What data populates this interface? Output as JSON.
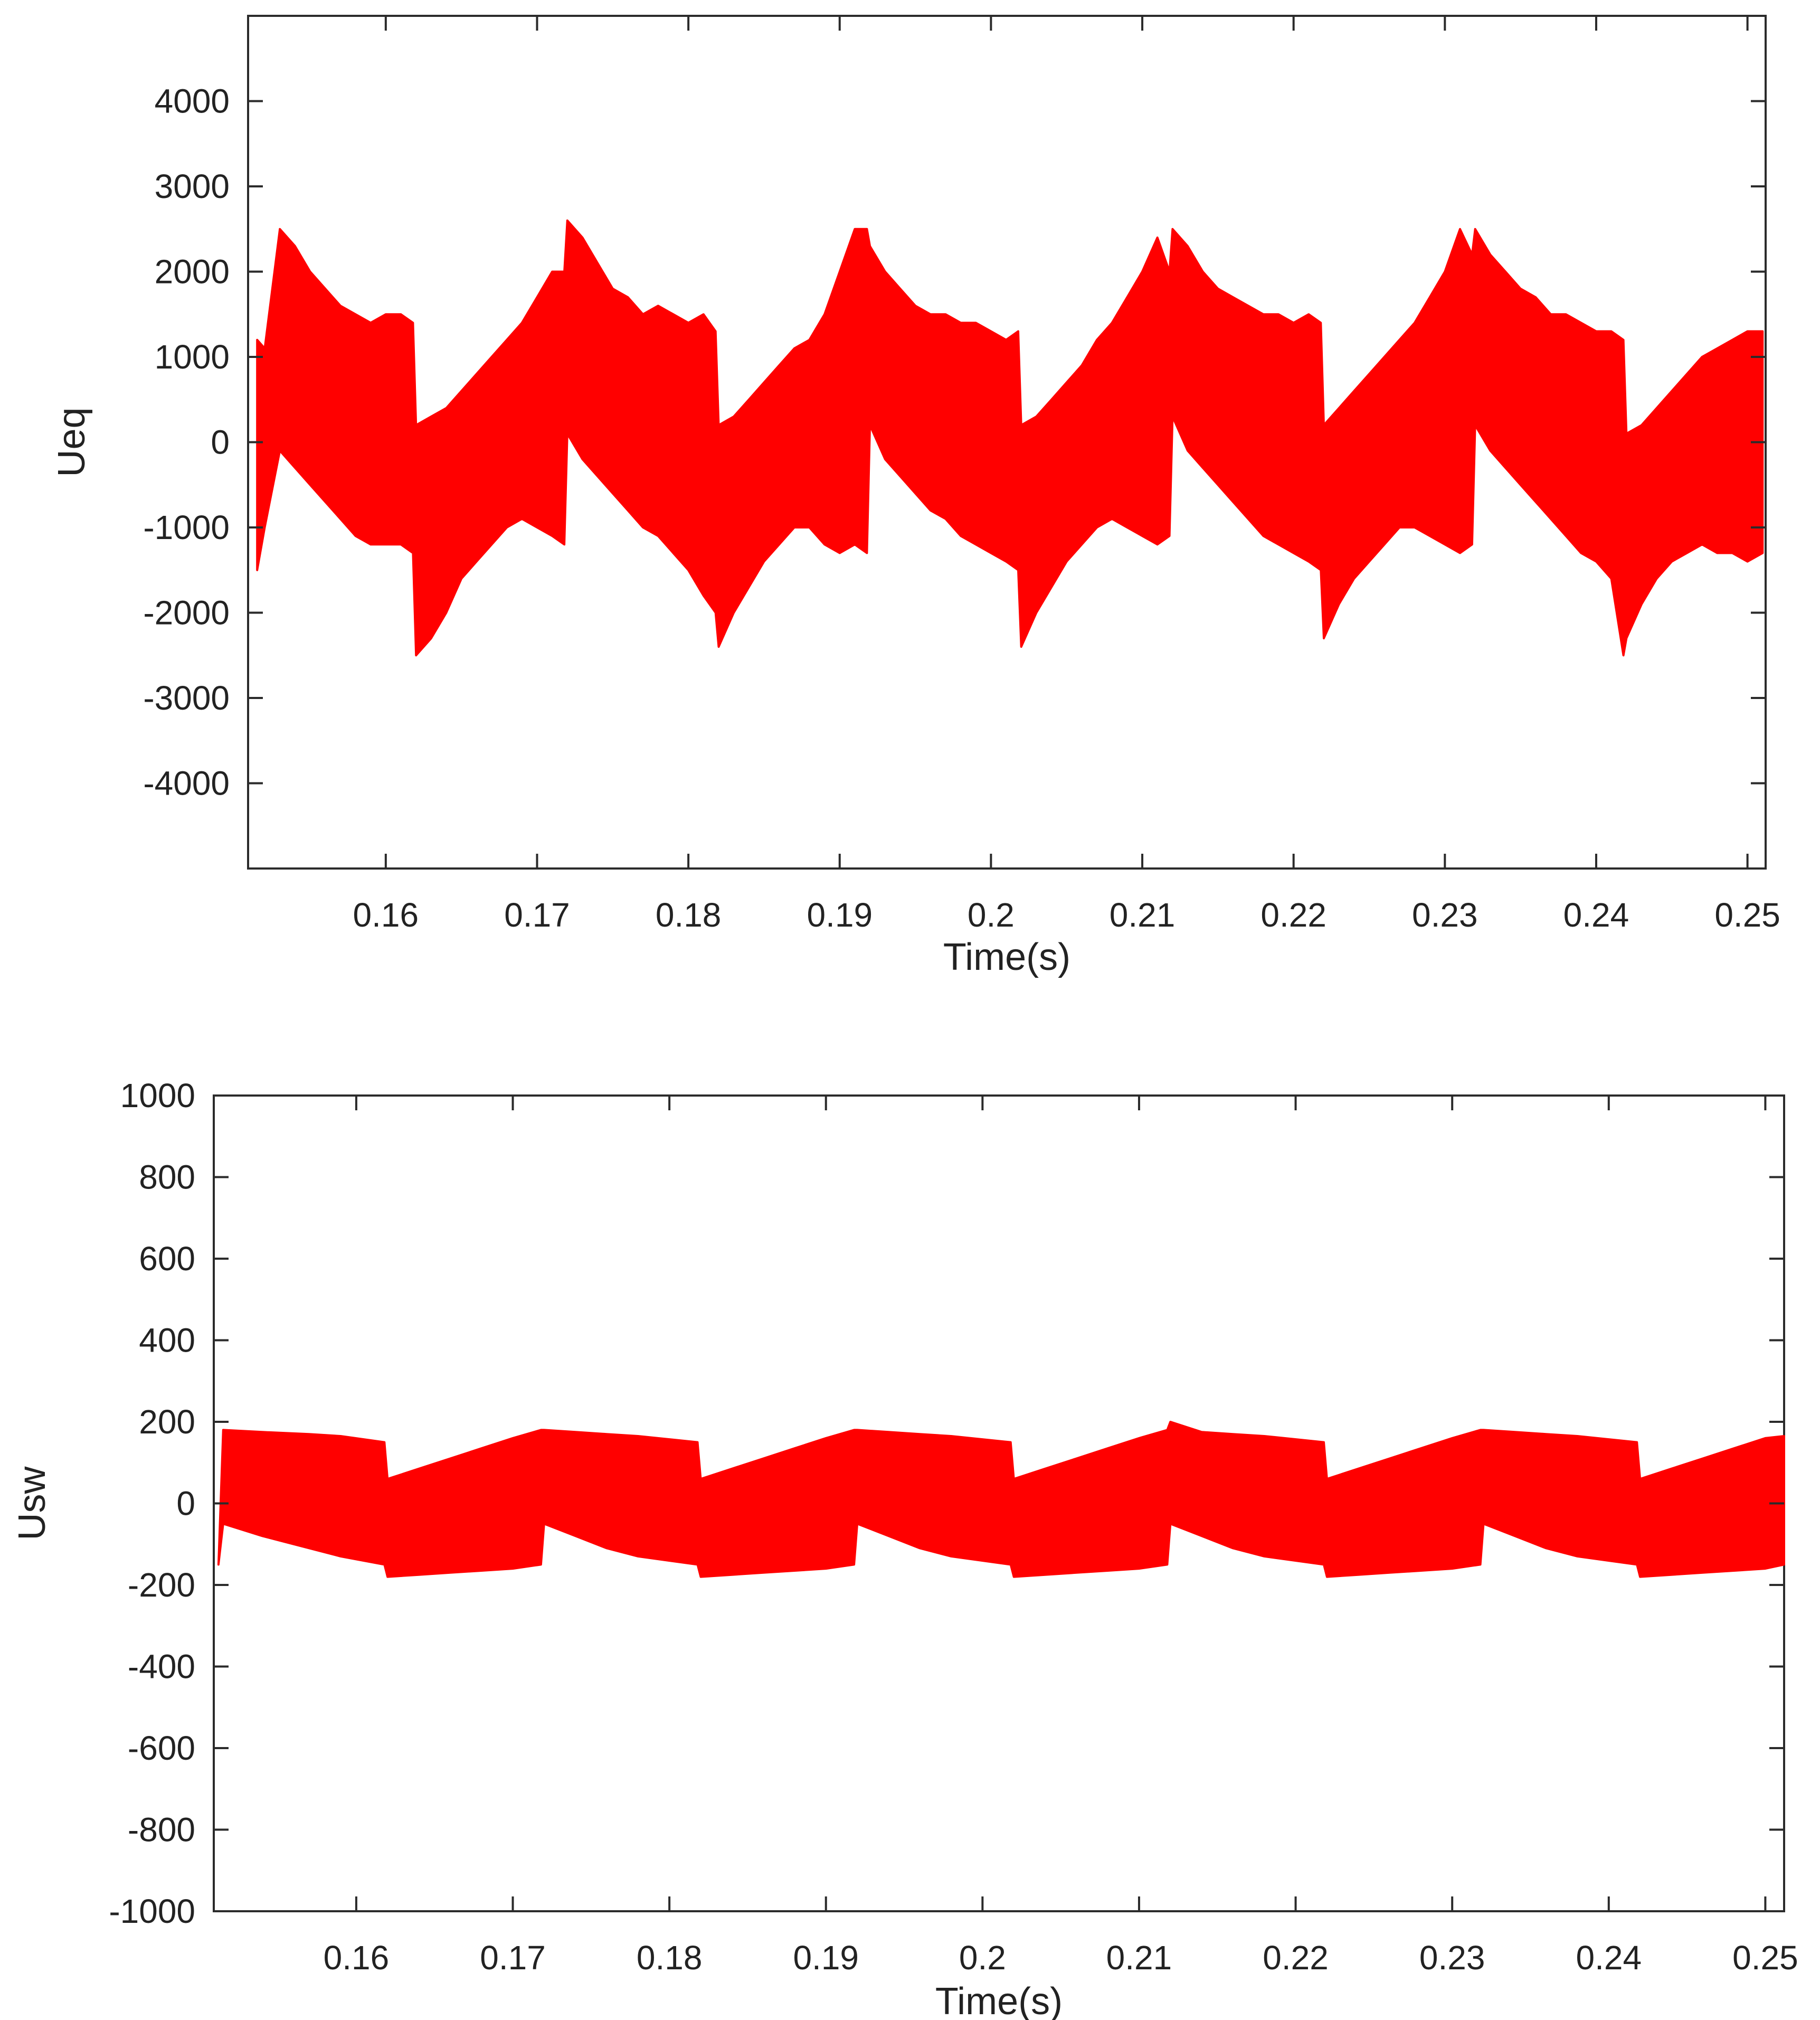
{
  "figure": {
    "background": "#ffffff",
    "axis_color": "#2b2b2b",
    "series_color": "#ff0000"
  },
  "chart_data": [
    {
      "type": "line",
      "title": "",
      "xlabel": "Time(s)",
      "ylabel": "Ueq",
      "xlim": [
        0.1509,
        0.2512
      ],
      "ylim": [
        -5000,
        5000
      ],
      "xticks": [
        0.16,
        0.17,
        0.18,
        0.19,
        0.2,
        0.21,
        0.22,
        0.23,
        0.24,
        0.25
      ],
      "xtick_labels": [
        "0.16",
        "0.17",
        "0.18",
        "0.19",
        "0.2",
        "0.21",
        "0.22",
        "0.23",
        "0.24",
        "0.25"
      ],
      "yticks": [
        4000,
        3000,
        2000,
        1000,
        0,
        -1000,
        -2000,
        -3000,
        -4000
      ],
      "ytick_labels": [
        "4000",
        "3000",
        "2000",
        "1000",
        "0",
        "-1000",
        "-2000",
        "-3000",
        "-4000"
      ],
      "grid": false,
      "color": "#ff0000",
      "series": [
        {
          "x": [
            0.1515,
            0.152,
            0.153,
            0.154,
            0.155,
            0.156,
            0.157,
            0.158,
            0.159,
            0.16,
            0.161,
            0.1618,
            0.162,
            0.163,
            0.164,
            0.165,
            0.166,
            0.167,
            0.168,
            0.169,
            0.17,
            0.171,
            0.1718,
            0.172,
            0.173,
            0.174,
            0.175,
            0.176,
            0.177,
            0.178,
            0.179,
            0.18,
            0.181,
            0.1818,
            0.182,
            0.183,
            0.184,
            0.185,
            0.186,
            0.187,
            0.188,
            0.189,
            0.19,
            0.191,
            0.1918,
            0.192,
            0.193,
            0.194,
            0.195,
            0.196,
            0.197,
            0.198,
            0.199,
            0.2,
            0.201,
            0.2018,
            0.202,
            0.203,
            0.204,
            0.205,
            0.206,
            0.207,
            0.208,
            0.209,
            0.21,
            0.211,
            0.2118,
            0.212,
            0.213,
            0.214,
            0.215,
            0.216,
            0.217,
            0.218,
            0.219,
            0.22,
            0.221,
            0.2218,
            0.222,
            0.223,
            0.224,
            0.225,
            0.226,
            0.227,
            0.228,
            0.229,
            0.23,
            0.231,
            0.2318,
            0.232,
            0.233,
            0.234,
            0.235,
            0.236,
            0.237,
            0.238,
            0.239,
            0.24,
            0.241,
            0.2418,
            0.242,
            0.243,
            0.244,
            0.245,
            0.246,
            0.247,
            0.248,
            0.249,
            0.25,
            0.251
          ],
          "upper": [
            1200,
            1100,
            2500,
            2300,
            2000,
            1800,
            1600,
            1500,
            1400,
            1500,
            1500,
            1400,
            200,
            300,
            400,
            600,
            800,
            1000,
            1200,
            1400,
            1700,
            2000,
            2000,
            2600,
            2400,
            2100,
            1800,
            1700,
            1500,
            1600,
            1500,
            1400,
            1500,
            1300,
            200,
            300,
            500,
            700,
            900,
            1100,
            1200,
            1500,
            2000,
            2500,
            2500,
            2300,
            2000,
            1800,
            1600,
            1500,
            1500,
            1400,
            1400,
            1300,
            1200,
            1300,
            200,
            300,
            500,
            700,
            900,
            1200,
            1400,
            1700,
            2000,
            2400,
            2000,
            2500,
            2300,
            2000,
            1800,
            1700,
            1600,
            1500,
            1500,
            1400,
            1500,
            1400,
            200,
            400,
            600,
            800,
            1000,
            1200,
            1400,
            1700,
            2000,
            2500,
            2200,
            2500,
            2200,
            2000,
            1800,
            1700,
            1500,
            1500,
            1400,
            1300,
            1300,
            1200,
            100,
            200,
            400,
            600,
            800,
            1000,
            1100,
            1200,
            1300,
            1300
          ],
          "lower": [
            -1500,
            -1000,
            -100,
            -300,
            -500,
            -700,
            -900,
            -1100,
            -1200,
            -1200,
            -1200,
            -1300,
            -2500,
            -2300,
            -2000,
            -1600,
            -1400,
            -1200,
            -1000,
            -900,
            -1000,
            -1100,
            -1200,
            100,
            -200,
            -400,
            -600,
            -800,
            -1000,
            -1100,
            -1300,
            -1500,
            -1800,
            -2000,
            -2400,
            -2000,
            -1700,
            -1400,
            -1200,
            -1000,
            -1000,
            -1200,
            -1300,
            -1200,
            -1300,
            200,
            -200,
            -400,
            -600,
            -800,
            -900,
            -1100,
            -1200,
            -1300,
            -1400,
            -1500,
            -2400,
            -2000,
            -1700,
            -1400,
            -1200,
            -1000,
            -900,
            -1000,
            -1100,
            -1200,
            -1100,
            300,
            -100,
            -300,
            -500,
            -700,
            -900,
            -1100,
            -1200,
            -1300,
            -1400,
            -1500,
            -2300,
            -1900,
            -1600,
            -1400,
            -1200,
            -1000,
            -1000,
            -1100,
            -1200,
            -1300,
            -1200,
            200,
            -100,
            -300,
            -500,
            -700,
            -900,
            -1100,
            -1300,
            -1400,
            -1600,
            -2500,
            -2300,
            -1900,
            -1600,
            -1400,
            -1300,
            -1200,
            -1300,
            -1300,
            -1400,
            -1300
          ]
        }
      ]
    },
    {
      "type": "line",
      "title": "",
      "xlabel": "Time(s)",
      "ylabel": "Usw",
      "xlim": [
        0.1509,
        0.2512
      ],
      "ylim": [
        -1000,
        1000
      ],
      "xticks": [
        0.16,
        0.17,
        0.18,
        0.19,
        0.2,
        0.21,
        0.22,
        0.23,
        0.24,
        0.25
      ],
      "xtick_labels": [
        "0.16",
        "0.17",
        "0.18",
        "0.19",
        "0.2",
        "0.21",
        "0.22",
        "0.23",
        "0.24",
        "0.25"
      ],
      "yticks": [
        1000,
        800,
        600,
        400,
        200,
        0,
        -200,
        -400,
        -600,
        -800,
        -1000
      ],
      "ytick_labels": [
        "1000",
        "800",
        "600",
        "400",
        "200",
        "0",
        "-200",
        "-400",
        "-600",
        "-800",
        "-1000"
      ],
      "grid": false,
      "color": "#ff0000",
      "series": [
        {
          "x": [
            0.1512,
            0.1515,
            0.154,
            0.157,
            0.159,
            0.1618,
            0.162,
            0.164,
            0.166,
            0.168,
            0.17,
            0.1718,
            0.172,
            0.174,
            0.176,
            0.178,
            0.1818,
            0.182,
            0.184,
            0.186,
            0.188,
            0.19,
            0.1918,
            0.192,
            0.194,
            0.196,
            0.198,
            0.2018,
            0.202,
            0.204,
            0.206,
            0.208,
            0.21,
            0.2118,
            0.212,
            0.214,
            0.216,
            0.218,
            0.2218,
            0.222,
            0.224,
            0.226,
            0.228,
            0.23,
            0.2318,
            0.232,
            0.234,
            0.236,
            0.238,
            0.2418,
            0.242,
            0.244,
            0.246,
            0.248,
            0.25,
            0.2512
          ],
          "upper": [
            -150,
            180,
            175,
            170,
            165,
            150,
            60,
            85,
            110,
            135,
            160,
            180,
            180,
            175,
            170,
            165,
            150,
            60,
            85,
            110,
            135,
            160,
            180,
            180,
            175,
            170,
            165,
            150,
            60,
            85,
            110,
            135,
            160,
            180,
            200,
            175,
            170,
            165,
            150,
            60,
            85,
            110,
            135,
            160,
            180,
            180,
            175,
            170,
            165,
            150,
            60,
            85,
            110,
            135,
            160,
            165
          ],
          "lower": [
            -150,
            -50,
            -80,
            -110,
            -130,
            -150,
            -180,
            -175,
            -170,
            -165,
            -160,
            -150,
            -50,
            -80,
            -110,
            -130,
            -150,
            -180,
            -175,
            -170,
            -165,
            -160,
            -150,
            -50,
            -80,
            -110,
            -130,
            -150,
            -180,
            -175,
            -170,
            -165,
            -160,
            -150,
            -50,
            -80,
            -110,
            -130,
            -150,
            -180,
            -175,
            -170,
            -165,
            -160,
            -150,
            -50,
            -80,
            -110,
            -130,
            -150,
            -180,
            -175,
            -170,
            -165,
            -160,
            -150
          ]
        }
      ]
    }
  ]
}
